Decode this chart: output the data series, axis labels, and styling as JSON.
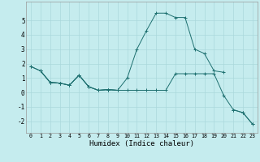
{
  "xlabel": "Humidex (Indice chaleur)",
  "bg_color": "#c5ecee",
  "grid_color": "#aad8dc",
  "line_color": "#1e7070",
  "ylim": [
    -2.8,
    6.3
  ],
  "xlim": [
    -0.5,
    23.5
  ],
  "yticks": [
    -2,
    -1,
    0,
    1,
    2,
    3,
    4,
    5
  ],
  "line1_x": [
    0,
    1,
    2,
    3,
    4,
    5,
    6,
    7,
    8,
    9,
    10,
    11,
    12,
    13,
    14,
    15,
    16,
    17,
    18,
    19,
    20
  ],
  "line1_y": [
    1.8,
    1.5,
    0.7,
    0.65,
    0.5,
    1.2,
    0.4,
    0.15,
    0.2,
    0.15,
    1.0,
    3.0,
    4.3,
    5.5,
    5.5,
    5.2,
    5.2,
    3.0,
    2.7,
    1.5,
    1.4
  ],
  "line2_x": [
    0,
    1,
    2,
    3,
    4,
    5,
    6,
    7,
    8,
    9,
    10,
    11,
    12,
    13,
    14,
    15,
    16,
    17,
    18,
    19,
    20,
    21,
    22,
    23
  ],
  "line2_y": [
    1.8,
    1.5,
    0.7,
    0.65,
    0.5,
    1.2,
    0.4,
    0.15,
    0.2,
    0.15,
    0.15,
    0.15,
    0.15,
    0.15,
    0.15,
    1.3,
    1.3,
    1.3,
    1.3,
    1.3,
    -0.2,
    -1.2,
    -1.4,
    -2.2
  ],
  "line3_x": [
    1,
    2,
    3,
    4,
    5,
    6,
    7,
    8,
    9
  ],
  "line3_y": [
    1.5,
    0.7,
    0.65,
    0.5,
    1.2,
    0.4,
    0.15,
    0.2,
    0.15
  ],
  "line4_x": [
    21,
    22,
    23
  ],
  "line4_y": [
    -1.2,
    -1.4,
    -2.2
  ]
}
